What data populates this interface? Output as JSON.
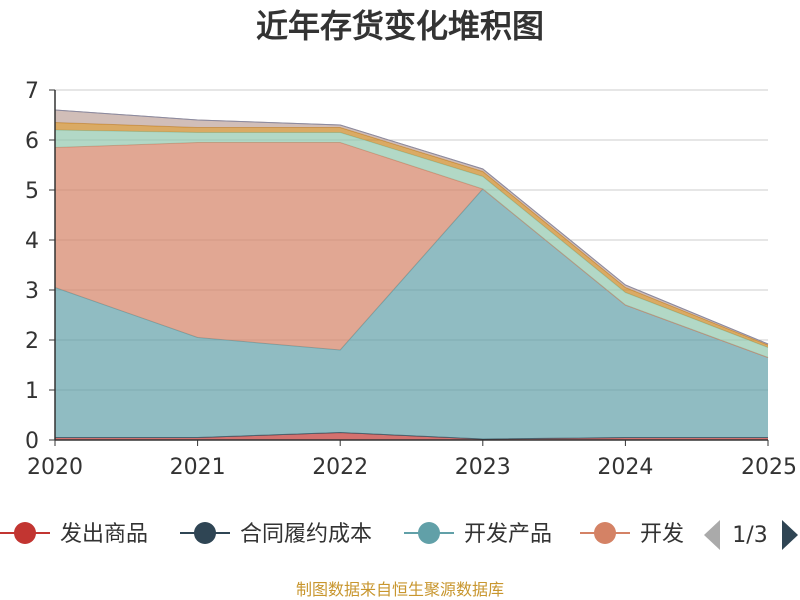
{
  "chart_data": {
    "type": "area",
    "stacked": true,
    "title": "近年存货变化堆积图",
    "x": [
      "2020",
      "2021",
      "2022",
      "2023",
      "2024",
      "2025"
    ],
    "ylim": [
      0,
      7
    ],
    "yticks": [
      "0",
      "1",
      "2",
      "3",
      "4",
      "5",
      "6",
      "7"
    ],
    "grid": true,
    "series": [
      {
        "name": "发出商品",
        "color": "#c23531",
        "values": [
          0.05,
          0.05,
          0.15,
          0.02,
          0.05,
          0.05
        ]
      },
      {
        "name": "合同履约成本",
        "color": "#2f4554",
        "values": [
          0.0,
          0.0,
          0.0,
          0.0,
          0.0,
          0.0
        ]
      },
      {
        "name": "开发产品",
        "color": "#61a0a8",
        "values": [
          3.0,
          2.0,
          1.65,
          5.0,
          2.65,
          1.6
        ]
      },
      {
        "name": "开发成本",
        "color": "#d48265",
        "values": [
          2.8,
          3.9,
          4.15,
          0.0,
          0.0,
          0.0
        ]
      },
      {
        "name": "",
        "color": "#91c7ae",
        "values": [
          0.35,
          0.2,
          0.2,
          0.25,
          0.25,
          0.2
        ]
      },
      {
        "name": "",
        "color": "#ca8622",
        "values": [
          0.15,
          0.1,
          0.1,
          0.1,
          0.1,
          0.05
        ]
      },
      {
        "name": "",
        "color": "#bda29a",
        "values": [
          0.25,
          0.15,
          0.05,
          0.05,
          0.05,
          0.02
        ]
      }
    ],
    "legend": {
      "position": "bottom",
      "visible_items": [
        "发出商品",
        "合同履约成本",
        "开发产品",
        "开发"
      ],
      "page": "1/3"
    },
    "source": "制图数据来自恒生聚源数据库"
  }
}
